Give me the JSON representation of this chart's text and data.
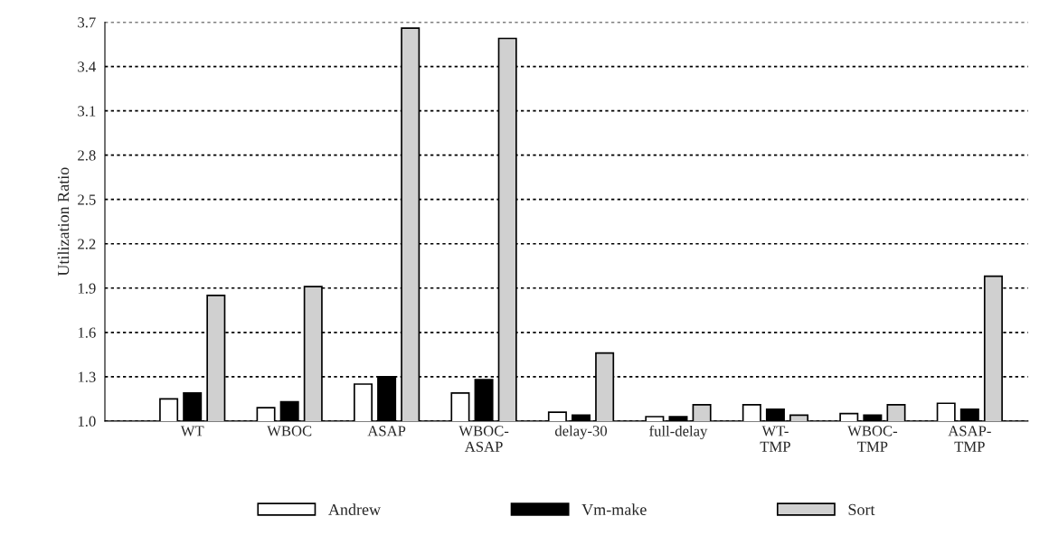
{
  "chart_data": {
    "type": "bar",
    "ylabel": "Utilization Ratio",
    "categories": [
      "WT",
      "WBOC",
      "ASAP",
      "WBOC-\nASAP",
      "delay-30",
      "full-delay",
      "WT-\nTMP",
      "WBOC-\nTMP",
      "ASAP-\nTMP"
    ],
    "series": [
      {
        "name": "Andrew",
        "color": "#ffffff",
        "values": [
          1.15,
          1.09,
          1.25,
          1.19,
          1.06,
          1.03,
          1.11,
          1.05,
          1.12
        ]
      },
      {
        "name": "Vm-make",
        "color": "#000000",
        "values": [
          1.19,
          1.13,
          1.3,
          1.28,
          1.04,
          1.03,
          1.08,
          1.04,
          1.08
        ]
      },
      {
        "name": "Sort",
        "color": "#d0d0d0",
        "values": [
          1.85,
          1.91,
          3.66,
          3.59,
          1.46,
          1.11,
          1.04,
          1.11,
          1.98
        ]
      }
    ],
    "ylim": [
      1.0,
      3.7
    ],
    "yticks": [
      {
        "value": 1.0,
        "label": "1.0"
      },
      1.3,
      1.6,
      1.9,
      2.2,
      2.5,
      2.8,
      3.1,
      3.4,
      3.7
    ],
    "grid": "y",
    "legend": "bottom"
  }
}
